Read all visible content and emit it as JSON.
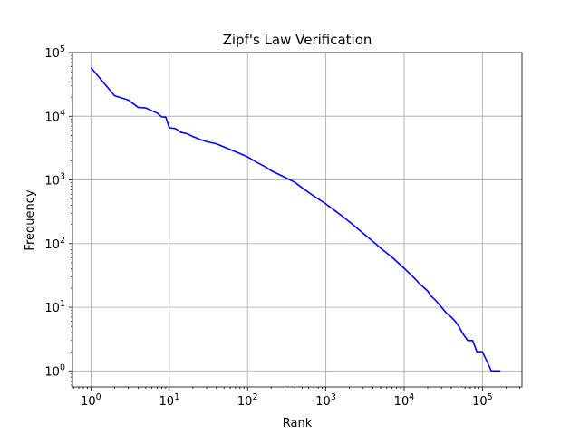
{
  "chart_data": {
    "type": "line",
    "title": "Zipf's Law Verification",
    "xlabel": "Rank",
    "ylabel": "Frequency",
    "xscale": "log",
    "yscale": "log",
    "xlim": [
      0.58,
      320000
    ],
    "ylim": [
      0.56,
      100000
    ],
    "grid": true,
    "x_ticks": [
      {
        "value": 1,
        "base": "10",
        "exp": "0"
      },
      {
        "value": 10,
        "base": "10",
        "exp": "1"
      },
      {
        "value": 100,
        "base": "10",
        "exp": "2"
      },
      {
        "value": 1000,
        "base": "10",
        "exp": "3"
      },
      {
        "value": 10000,
        "base": "10",
        "exp": "4"
      },
      {
        "value": 100000,
        "base": "10",
        "exp": "5"
      }
    ],
    "y_ticks": [
      {
        "value": 1,
        "base": "10",
        "exp": "0"
      },
      {
        "value": 10,
        "base": "10",
        "exp": "1"
      },
      {
        "value": 100,
        "base": "10",
        "exp": "2"
      },
      {
        "value": 1000,
        "base": "10",
        "exp": "3"
      },
      {
        "value": 10000,
        "base": "10",
        "exp": "4"
      },
      {
        "value": 100000,
        "base": "10",
        "exp": "5"
      }
    ],
    "series": [
      {
        "color": "#0000ff",
        "x": [
          1,
          2,
          3,
          4,
          5,
          6,
          7,
          8,
          9,
          10,
          12,
          14,
          17,
          20,
          25,
          30,
          40,
          50,
          60,
          80,
          100,
          130,
          170,
          200,
          300,
          400,
          500,
          700,
          1000,
          1500,
          2000,
          3000,
          4000,
          5000,
          7000,
          10000,
          13000,
          16000,
          20000,
          22000,
          25000,
          30000,
          35000,
          40000,
          45000,
          50000,
          55000,
          65000,
          75000,
          85000,
          100000,
          130000,
          170000
        ],
        "y": [
          58000,
          21000,
          18000,
          13800,
          13500,
          12200,
          11200,
          9800,
          9700,
          6600,
          6400,
          5600,
          5300,
          4800,
          4300,
          4000,
          3700,
          3300,
          3000,
          2600,
          2300,
          1900,
          1600,
          1400,
          1100,
          920,
          750,
          560,
          420,
          290,
          220,
          145,
          108,
          85,
          61,
          41,
          30,
          23,
          18,
          15,
          13,
          10,
          8,
          7,
          6,
          5,
          4,
          3,
          3,
          2,
          2,
          1,
          1
        ]
      }
    ]
  }
}
